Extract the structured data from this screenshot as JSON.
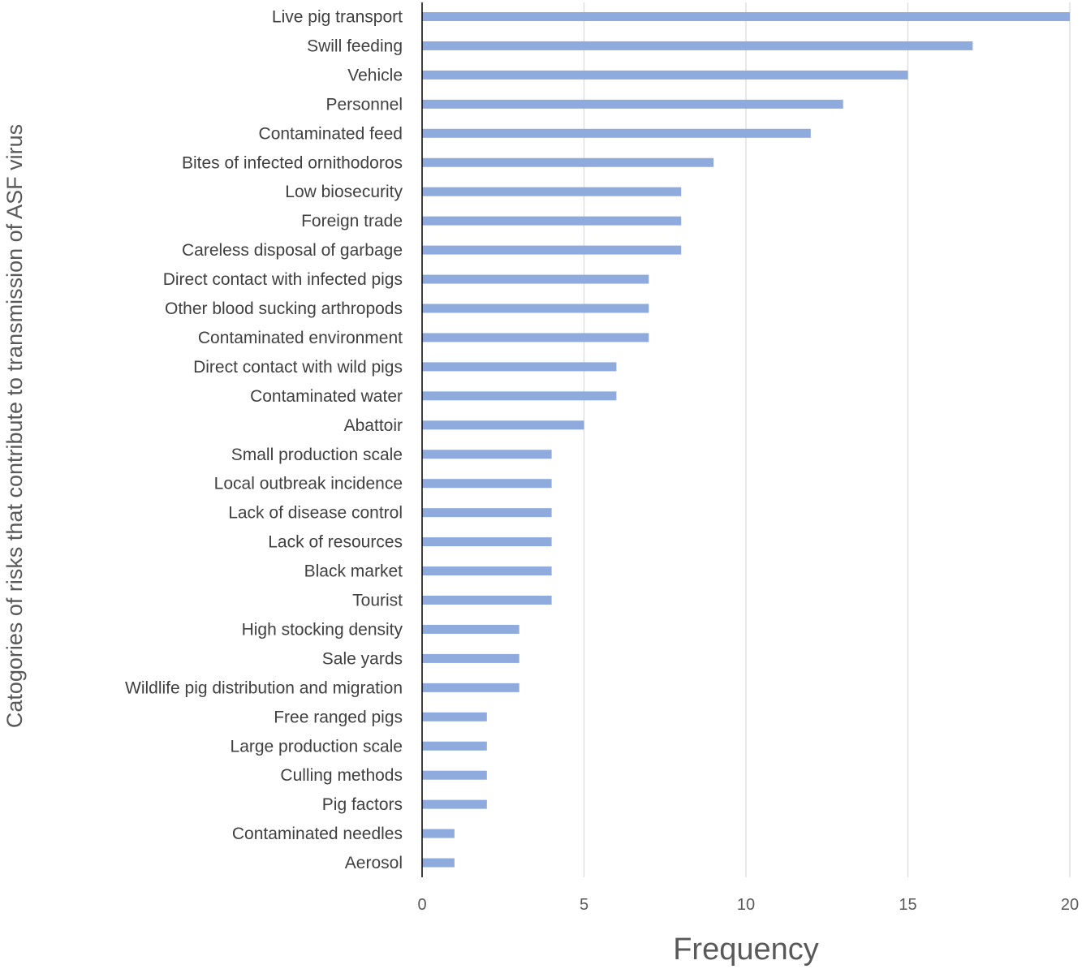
{
  "chart_data": {
    "type": "bar",
    "orientation": "horizontal",
    "xlabel": "Frequency",
    "ylabel": "Catogories of risks  that contribute to transmission of ASF virus",
    "xlim": [
      0,
      20
    ],
    "xticks": [
      0,
      5,
      10,
      15,
      20
    ],
    "grid": true,
    "bar_color": "#8faadc",
    "categories": [
      "Live pig transport",
      "Swill feeding",
      "Vehicle",
      "Personnel",
      "Contaminated feed",
      "Bites of infected ornithodoros",
      "Low biosecurity",
      "Foreign trade",
      "Careless disposal of garbage",
      "Direct contact with infected pigs",
      "Other blood sucking arthropods",
      "Contaminated environment",
      "Direct contact with wild pigs",
      "Contaminated water",
      "Abattoir",
      "Small production scale",
      "Local outbreak incidence",
      "Lack of disease control",
      "Lack of resources",
      "Black market",
      "Tourist",
      "High stocking density",
      "Sale yards",
      "Wildlife pig distribution and migration",
      "Free ranged pigs",
      "Large production scale",
      "Culling methods",
      "Pig factors",
      "Contaminated needles",
      "Aerosol"
    ],
    "values": [
      20,
      17,
      15,
      13,
      12,
      9,
      8,
      8,
      8,
      7,
      7,
      7,
      6,
      6,
      5,
      4,
      4,
      4,
      4,
      4,
      4,
      3,
      3,
      3,
      2,
      2,
      2,
      2,
      1,
      1
    ]
  }
}
